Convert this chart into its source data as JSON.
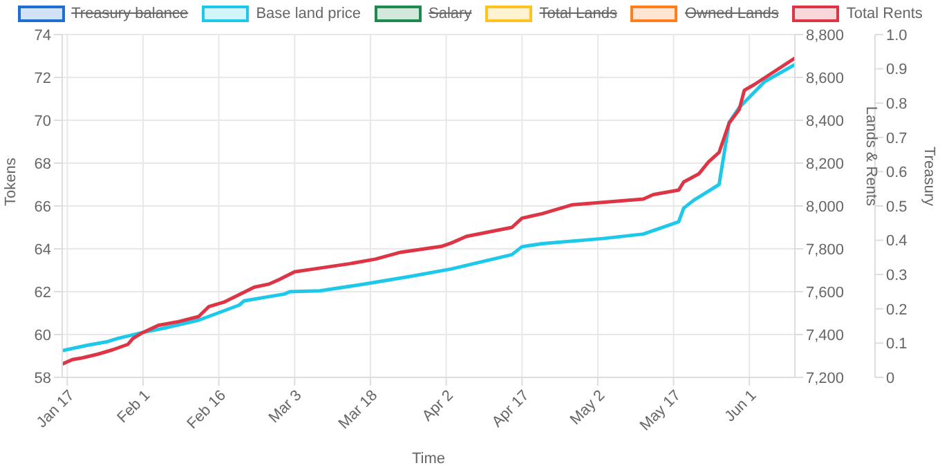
{
  "chart_data": {
    "type": "line",
    "xlabel": "Time",
    "ylabel": "Tokens",
    "y2label": "Lands & Rents",
    "y3label": "Treasury",
    "xlim": [
      "--01-16",
      "--06-10"
    ],
    "xticks": [
      {
        "value": "--01-17",
        "label": "Jan 17"
      },
      {
        "value": "--02-01",
        "label": "Feb 1"
      },
      {
        "value": "--02-16",
        "label": "Feb 16"
      },
      {
        "value": "--03-03",
        "label": "Mar 3"
      },
      {
        "value": "--03-18",
        "label": "Mar 18"
      },
      {
        "value": "--04-02",
        "label": "Apr 2"
      },
      {
        "value": "--04-17",
        "label": "Apr 17"
      },
      {
        "value": "--05-02",
        "label": "May 2"
      },
      {
        "value": "--05-17",
        "label": "May 17"
      },
      {
        "value": "--06-01",
        "label": "Jun 1"
      }
    ],
    "ylim": [
      58,
      74
    ],
    "yticks": [
      58,
      60,
      62,
      64,
      66,
      68,
      70,
      72,
      74
    ],
    "y2lim": [
      7200,
      8800
    ],
    "y2ticks": [
      {
        "value": 7200,
        "label": "7,200"
      },
      {
        "value": 7400,
        "label": "7,400"
      },
      {
        "value": 7600,
        "label": "7,600"
      },
      {
        "value": 7800,
        "label": "7,800"
      },
      {
        "value": 8000,
        "label": "8,000"
      },
      {
        "value": 8200,
        "label": "8,200"
      },
      {
        "value": 8400,
        "label": "8,400"
      },
      {
        "value": 8600,
        "label": "8,600"
      },
      {
        "value": 8800,
        "label": "8,800"
      }
    ],
    "y3lim": [
      0,
      1
    ],
    "y3ticks": [
      0,
      0.1,
      0.2,
      0.3,
      0.4,
      0.5,
      0.6,
      0.7,
      0.8,
      0.9,
      {
        "value": 1,
        "label": "1.0"
      }
    ],
    "grid": true,
    "legend": "top",
    "marker": "none",
    "line_style": "solid",
    "series": [
      {
        "name": "Treasury balance",
        "color": "#1e6fd0",
        "axis": "y3"
      },
      {
        "name": "Base land price",
        "color": "#1ec8ea",
        "axis": "y",
        "x": [
          "--01-16",
          "--01-21",
          "--01-25",
          "--01-27",
          "--02-01",
          "--02-05",
          "--02-12",
          "--02-20",
          "--02-21",
          "--03-01",
          "--03-02",
          "--03-08",
          "--03-17",
          "--03-26",
          "--04-03",
          "--04-15",
          "--04-17",
          "--04-21",
          "--05-03",
          "--05-11",
          "--05-18",
          "--05-19",
          "--05-21",
          "--05-26",
          "--05-28",
          "--05-30",
          "--06-04",
          "--06-10"
        ],
        "values": [
          59.25,
          59.5,
          59.67,
          59.82,
          60.1,
          60.29,
          60.67,
          61.37,
          61.57,
          61.89,
          62.0,
          62.04,
          62.36,
          62.72,
          63.06,
          63.73,
          64.1,
          64.24,
          64.48,
          64.69,
          65.26,
          65.9,
          66.27,
          67.0,
          69.9,
          70.6,
          71.8,
          72.6
        ]
      },
      {
        "name": "Salary",
        "color": "#1e8a50"
      },
      {
        "name": "Total Lands",
        "color": "#ffc21e",
        "axis": "y2"
      },
      {
        "name": "Owned Lands",
        "color": "#ff7f1e",
        "axis": "y2"
      },
      {
        "name": "Total Rents",
        "color": "#dc3545",
        "axis": "y2",
        "x": [
          "--01-16",
          "--01-18",
          "--01-20",
          "--01-23",
          "--01-26",
          "--01-29",
          "--01-30",
          "--02-01",
          "--02-04",
          "--02-08",
          "--02-12",
          "--02-14",
          "--02-17",
          "--02-23",
          "--02-26",
          "--02-28",
          "--03-03",
          "--03-08",
          "--03-14",
          "--03-19",
          "--03-24",
          "--04-01",
          "--04-03",
          "--04-06",
          "--04-15",
          "--04-17",
          "--04-21",
          "--04-27",
          "--05-11",
          "--05-13",
          "--05-18",
          "--05-19",
          "--05-22",
          "--05-24",
          "--05-26",
          "--05-28",
          "--05-30",
          "--05-31",
          "--06-02",
          "--06-10"
        ],
        "values": [
          7262,
          7283,
          7291,
          7308,
          7329,
          7354,
          7382,
          7410,
          7443,
          7460,
          7484,
          7530,
          7551,
          7621,
          7636,
          7657,
          7693,
          7710,
          7731,
          7752,
          7784,
          7811,
          7827,
          7858,
          7900,
          7943,
          7964,
          8006,
          8032,
          8053,
          8074,
          8112,
          8150,
          8208,
          8250,
          8387,
          8451,
          8540,
          8567,
          8690
        ]
      }
    ]
  }
}
